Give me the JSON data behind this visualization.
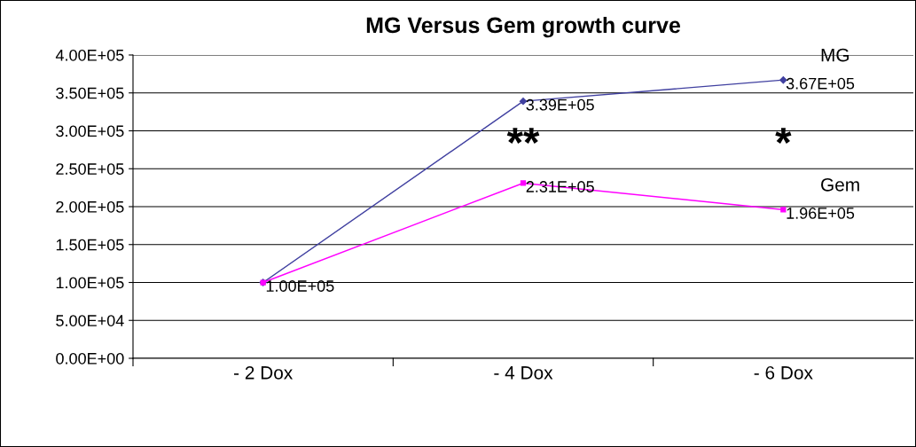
{
  "chart_data": {
    "type": "line",
    "title": "MG Versus Gem growth curve",
    "categories": [
      "- 2 Dox",
      "- 4 Dox",
      "- 6 Dox"
    ],
    "series": [
      {
        "name": "MG",
        "color": "#4040a0",
        "marker": "diamond",
        "values": [
          100000,
          339000,
          367000
        ],
        "value_labels": [
          "1.00E+05",
          "3.39E+05",
          "3.67E+05"
        ]
      },
      {
        "name": "Gem",
        "color": "#ff00ff",
        "marker": "square",
        "values": [
          100000,
          231000,
          196000
        ],
        "value_labels": [
          null,
          "2.31E+05",
          "1.96E+05"
        ]
      }
    ],
    "ylim": [
      0,
      400000
    ],
    "yticks": [
      {
        "value": 0,
        "label": "0.00E+00"
      },
      {
        "value": 50000,
        "label": "5.00E+04"
      },
      {
        "value": 100000,
        "label": "1.00E+05"
      },
      {
        "value": 150000,
        "label": "1.50E+05"
      },
      {
        "value": 200000,
        "label": "2.00E+05"
      },
      {
        "value": 250000,
        "label": "2.50E+05"
      },
      {
        "value": 300000,
        "label": "3.00E+05"
      },
      {
        "value": 350000,
        "label": "3.50E+05"
      },
      {
        "value": 400000,
        "label": "4.00E+05"
      }
    ],
    "grid": "y",
    "legend": false,
    "annotations": [
      "**",
      "*"
    ]
  }
}
